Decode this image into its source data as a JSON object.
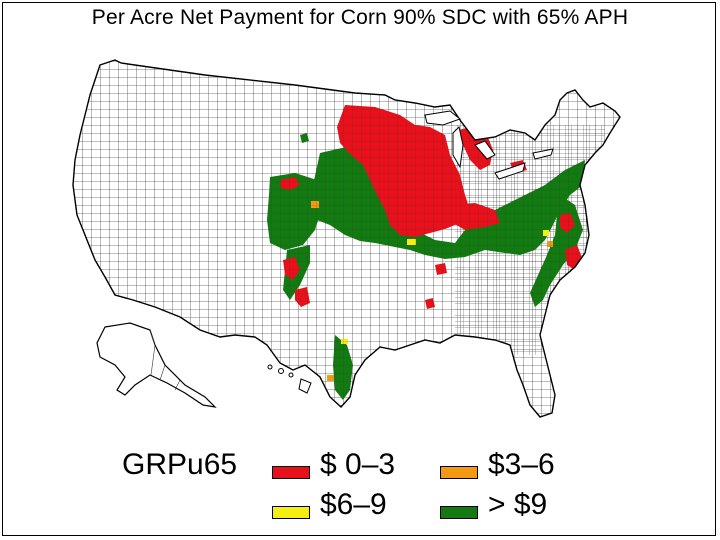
{
  "title": "Per Acre Net Payment for Corn 90% SDC with 65% APH",
  "legend": {
    "code": "GRPu65",
    "items": [
      {
        "label": "$ 0–3",
        "color": "#e8101a"
      },
      {
        "label": "$3–6",
        "color": "#f39a12"
      },
      {
        "label": "$6–9",
        "color": "#f5ef10"
      },
      {
        "label": "> $9",
        "color": "#127a10"
      }
    ]
  },
  "colors": {
    "background": "#ffffff",
    "county_line": "#222222",
    "state_line": "#000000"
  }
}
